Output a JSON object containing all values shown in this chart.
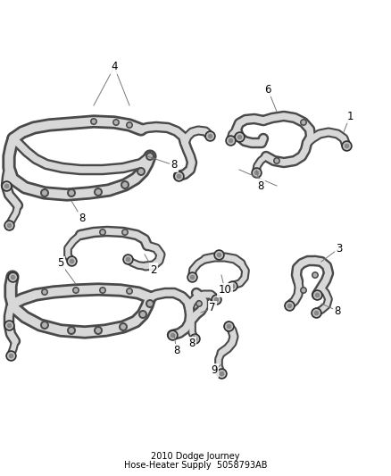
{
  "background_color": "#ffffff",
  "outer_color": "#4a4a4a",
  "inner_color": "#d8d8d8",
  "label_color": "#000000",
  "line_color": "#555555",
  "figsize": [
    4.38,
    5.33
  ],
  "dpi": 100,
  "title_line1": "2010 Dodge Journey",
  "title_line2": "Hose-Heater Supply",
  "title_line3": "5058793AB",
  "title_fontsize": 7.0,
  "label_fontsize": 8.5
}
